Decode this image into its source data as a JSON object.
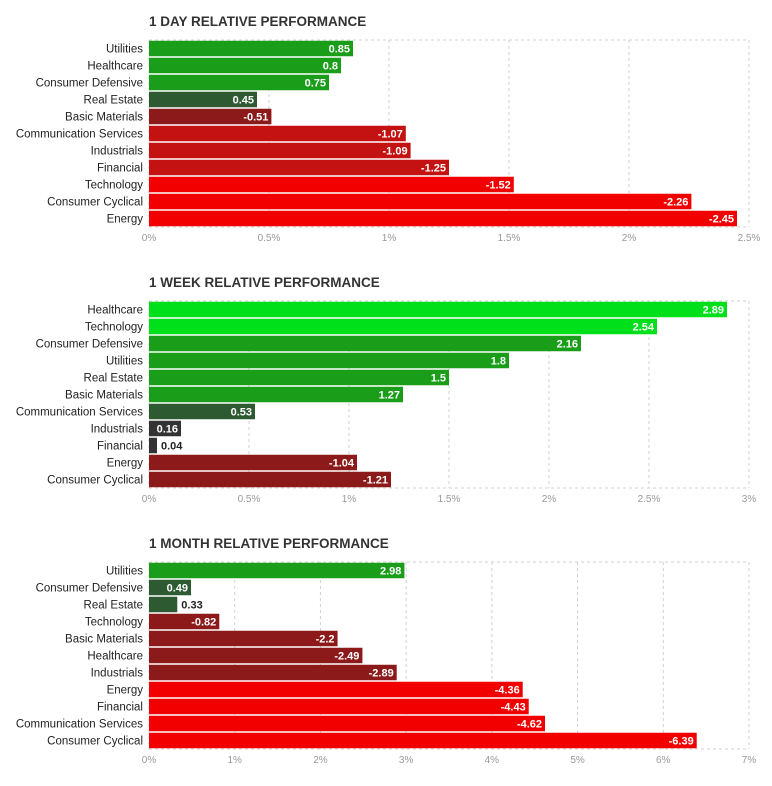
{
  "colors": {
    "strong_green": "#00e01a",
    "green": "#1a9e1a",
    "dark_green": "#2e5a32",
    "neutral": "#333333",
    "dark_red": "#8c1a1a",
    "red": "#c41212",
    "bright_red": "#f20000",
    "grid": "#d0d0d0"
  },
  "chart_data": [
    {
      "type": "bar",
      "orientation": "horizontal",
      "title": "1 DAY RELATIVE PERFORMANCE",
      "categories": [
        "Utilities",
        "Healthcare",
        "Consumer Defensive",
        "Real Estate",
        "Basic Materials",
        "Communication Services",
        "Industrials",
        "Financial",
        "Technology",
        "Consumer Cyclical",
        "Energy"
      ],
      "values": [
        0.85,
        0.8,
        0.75,
        0.45,
        -0.51,
        -1.07,
        -1.09,
        -1.25,
        -1.52,
        -2.26,
        -2.45
      ],
      "value_labels": [
        "0.85",
        "0.8",
        "0.75",
        "0.45",
        "-0.51",
        "-1.07",
        "-1.09",
        "-1.25",
        "-1.52",
        "-2.26",
        "-2.45"
      ],
      "bar_colors": [
        "#1a9e1a",
        "#1a9e1a",
        "#1a9e1a",
        "#2e5a32",
        "#8c1a1a",
        "#c41212",
        "#c41212",
        "#c41212",
        "#f20000",
        "#f20000",
        "#f20000"
      ],
      "ticks": [
        "0%",
        "0.5%",
        "1%",
        "1.5%",
        "2%",
        "2.5%"
      ],
      "xlim": [
        0,
        2.5
      ],
      "bar_length": "absolute value",
      "grid": true
    },
    {
      "type": "bar",
      "orientation": "horizontal",
      "title": "1 WEEK RELATIVE PERFORMANCE",
      "categories": [
        "Healthcare",
        "Technology",
        "Consumer Defensive",
        "Utilities",
        "Real Estate",
        "Basic Materials",
        "Communication Services",
        "Industrials",
        "Financial",
        "Energy",
        "Consumer Cyclical"
      ],
      "values": [
        2.89,
        2.54,
        2.16,
        1.8,
        1.5,
        1.27,
        0.53,
        0.16,
        0.04,
        -1.04,
        -1.21
      ],
      "value_labels": [
        "2.89",
        "2.54",
        "2.16",
        "1.8",
        "1.5",
        "1.27",
        "0.53",
        "0.16",
        "0.04",
        "-1.04",
        "-1.21"
      ],
      "bar_colors": [
        "#00e01a",
        "#00e01a",
        "#1a9e1a",
        "#1a9e1a",
        "#1a9e1a",
        "#1a9e1a",
        "#2e5a32",
        "#333333",
        "#333333",
        "#8c1a1a",
        "#8c1a1a"
      ],
      "ticks": [
        "0%",
        "0.5%",
        "1%",
        "1.5%",
        "2%",
        "2.5%",
        "3%"
      ],
      "xlim": [
        0,
        3
      ],
      "bar_length": "absolute value",
      "grid": true
    },
    {
      "type": "bar",
      "orientation": "horizontal",
      "title": "1 MONTH RELATIVE PERFORMANCE",
      "categories": [
        "Utilities",
        "Consumer Defensive",
        "Real Estate",
        "Technology",
        "Basic Materials",
        "Healthcare",
        "Industrials",
        "Energy",
        "Financial",
        "Communication Services",
        "Consumer Cyclical"
      ],
      "values": [
        2.98,
        0.49,
        0.33,
        -0.82,
        -2.2,
        -2.49,
        -2.89,
        -4.36,
        -4.43,
        -4.62,
        -6.39
      ],
      "value_labels": [
        "2.98",
        "0.49",
        "0.33",
        "-0.82",
        "-2.2",
        "-2.49",
        "-2.89",
        "-4.36",
        "-4.43",
        "-4.62",
        "-6.39"
      ],
      "bar_colors": [
        "#1a9e1a",
        "#2e5a32",
        "#2e5a32",
        "#8c1a1a",
        "#8c1a1a",
        "#8c1a1a",
        "#8c1a1a",
        "#f20000",
        "#f20000",
        "#f20000",
        "#f20000"
      ],
      "ticks": [
        "0%",
        "1%",
        "2%",
        "3%",
        "4%",
        "5%",
        "6%",
        "7%"
      ],
      "xlim": [
        0,
        7
      ],
      "bar_length": "absolute value",
      "grid": true
    }
  ]
}
